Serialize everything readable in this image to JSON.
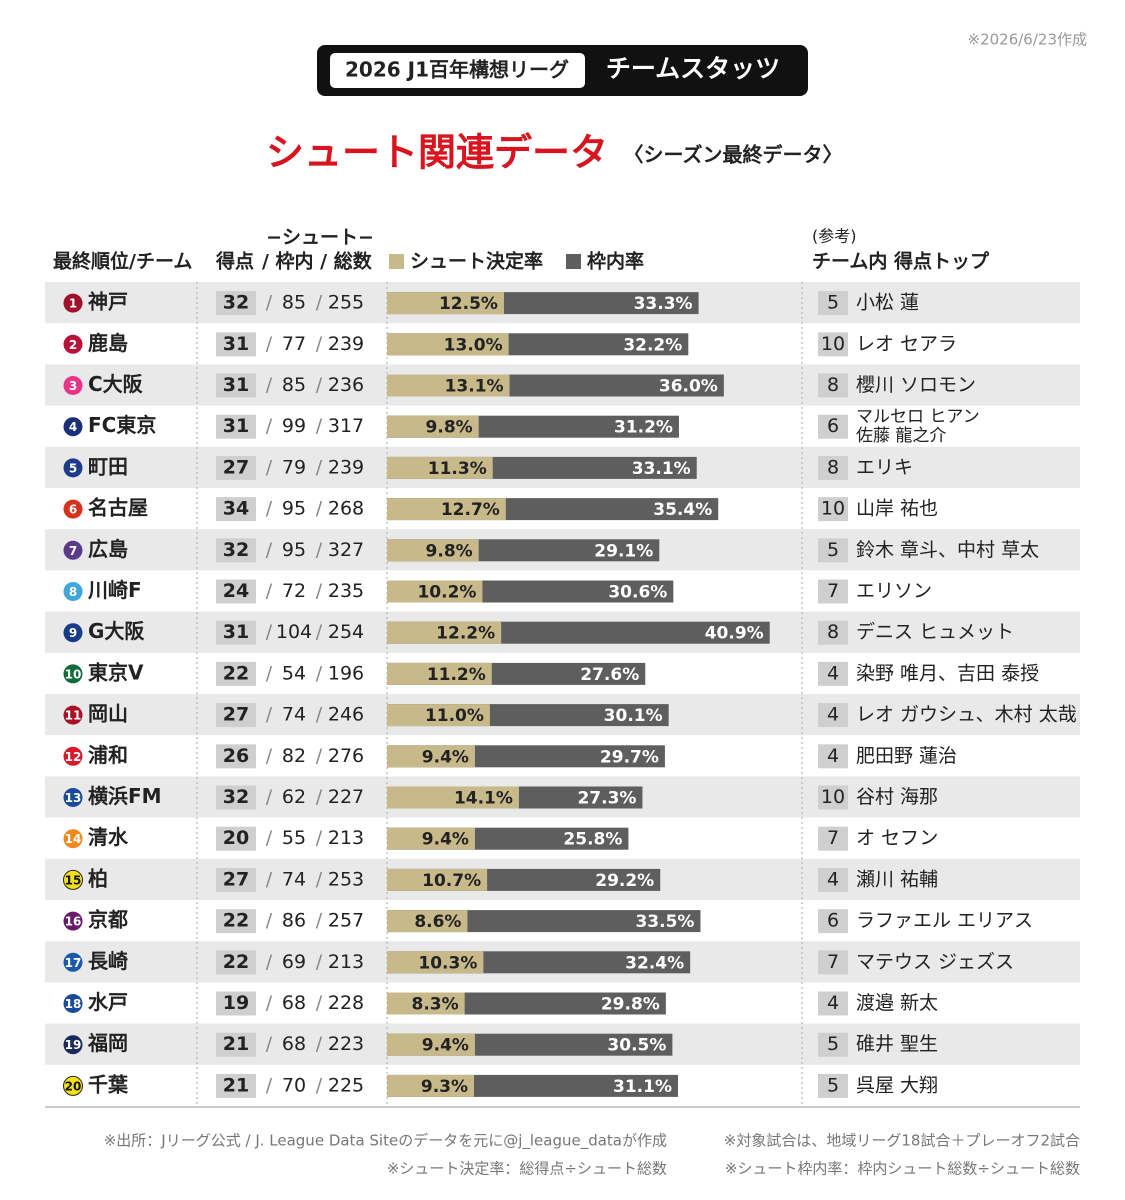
{
  "header": {
    "badge": "2026 J1百年構想リーグ",
    "title": "チームスタッツ",
    "date": "※2026/6/23作成"
  },
  "chart_data": {
    "type": "bar",
    "title": "シュート関連データ",
    "subtitle": "〈シーズン最終データ〉",
    "columns": {
      "team": "最終順位/チーム",
      "goals": "得点",
      "shots_group": "−シュート−",
      "shots": "/ 枠内 / 総数",
      "reference": "(参考)",
      "top_scorer": "チーム内 得点トップ"
    },
    "separator": "/",
    "xlim": [
      0,
      42
    ],
    "series": [
      {
        "name": "シュート決定率",
        "color": "#c8b98a"
      },
      {
        "name": "枠内率",
        "color": "#5e5e5e"
      }
    ],
    "ranks": [
      1,
      2,
      3,
      4,
      5,
      6,
      7,
      8,
      9,
      10,
      11,
      12,
      13,
      14,
      15,
      16,
      17,
      18,
      19,
      20
    ],
    "teams": [
      "神戸",
      "鹿島",
      "C大阪",
      "FC東京",
      "町田",
      "名古屋",
      "広島",
      "川崎F",
      "G大阪",
      "東京V",
      "岡山",
      "浦和",
      "横浜FM",
      "清水",
      "柏",
      "京都",
      "長崎",
      "水戸",
      "福岡",
      "千葉"
    ],
    "team_colors": [
      "#a0102a",
      "#b8123a",
      "#e8358a",
      "#1c2f7a",
      "#1f3c8c",
      "#d8301f",
      "#5c3a8a",
      "#3fa7dc",
      "#1a3a8a",
      "#0f6b3a",
      "#a8102a",
      "#d81a2a",
      "#1a4a9a",
      "#f08a1a",
      "#f2e01a",
      "#6a1a6a",
      "#1a5aaa",
      "#1a4a9a",
      "#1a2a5a",
      "#f2e01a"
    ],
    "goals": [
      32,
      31,
      31,
      31,
      27,
      34,
      32,
      24,
      31,
      22,
      27,
      26,
      32,
      20,
      27,
      22,
      22,
      19,
      21,
      21
    ],
    "on_target": [
      85,
      77,
      85,
      99,
      79,
      95,
      95,
      72,
      104,
      54,
      74,
      82,
      62,
      55,
      74,
      86,
      69,
      68,
      68,
      70
    ],
    "shots": [
      255,
      239,
      236,
      317,
      239,
      268,
      327,
      235,
      254,
      196,
      246,
      276,
      227,
      213,
      253,
      257,
      213,
      228,
      223,
      225
    ],
    "conversion": [
      12.5,
      13.0,
      13.1,
      9.8,
      11.3,
      12.7,
      9.8,
      10.2,
      12.2,
      11.2,
      11.0,
      9.4,
      14.1,
      9.4,
      10.7,
      8.6,
      10.3,
      8.3,
      9.4,
      9.3
    ],
    "conversion_labels": [
      "12.5%",
      "13.0%",
      "13.1%",
      "9.8%",
      "11.3%",
      "12.7%",
      "9.8%",
      "10.2%",
      "12.2%",
      "11.2%",
      "11.0%",
      "9.4%",
      "14.1%",
      "9.4%",
      "10.7%",
      "8.6%",
      "10.3%",
      "8.3%",
      "9.4%",
      "9.3%"
    ],
    "on_target_rate": [
      33.3,
      32.2,
      36.0,
      31.2,
      33.1,
      35.4,
      29.1,
      30.6,
      40.9,
      27.6,
      30.1,
      29.7,
      27.3,
      25.8,
      29.2,
      33.5,
      32.4,
      29.8,
      30.5,
      31.1
    ],
    "on_target_rate_labels": [
      "33.3%",
      "32.2%",
      "36.0%",
      "31.2%",
      "33.1%",
      "35.4%",
      "29.1%",
      "30.6%",
      "40.9%",
      "27.6%",
      "30.1%",
      "29.7%",
      "27.3%",
      "25.8%",
      "29.2%",
      "33.5%",
      "32.4%",
      "29.8%",
      "30.5%",
      "31.1%"
    ],
    "top_goals": [
      5,
      10,
      8,
      6,
      8,
      10,
      5,
      7,
      8,
      4,
      4,
      4,
      10,
      7,
      4,
      6,
      7,
      4,
      5,
      5
    ],
    "top_scorers": [
      [
        "小松 蓮"
      ],
      [
        "レオ セアラ"
      ],
      [
        "櫻川 ソロモン"
      ],
      [
        "マルセロ ヒアン",
        "佐藤 龍之介"
      ],
      [
        "エリキ"
      ],
      [
        "山岸 祐也"
      ],
      [
        "鈴木 章斗、中村 草太"
      ],
      [
        "エリソン"
      ],
      [
        "デニス ヒュメット"
      ],
      [
        "染野 唯月、吉田 泰授"
      ],
      [
        "レオ ガウシュ、木村 太哉"
      ],
      [
        "肥田野 蓮治"
      ],
      [
        "谷村 海那"
      ],
      [
        "オ セフン"
      ],
      [
        "瀬川 祐輔"
      ],
      [
        "ラファエル エリアス"
      ],
      [
        "マテウス ジェズス"
      ],
      [
        "渡邉 新太"
      ],
      [
        "碓井 聖生"
      ],
      [
        "呉屋 大翔"
      ]
    ]
  },
  "footer": {
    "source": "※出所：Jリーグ公式 / J. League Data Siteのデータを元に@j_league_dataが作成",
    "scope": "※対象試合は、地域リーグ18試合＋プレーオフ2試合",
    "def_conversion": "※シュート決定率：総得点÷シュート総数",
    "def_on_target": "※シュート枠内率：枠内シュート総数÷シュート総数"
  }
}
